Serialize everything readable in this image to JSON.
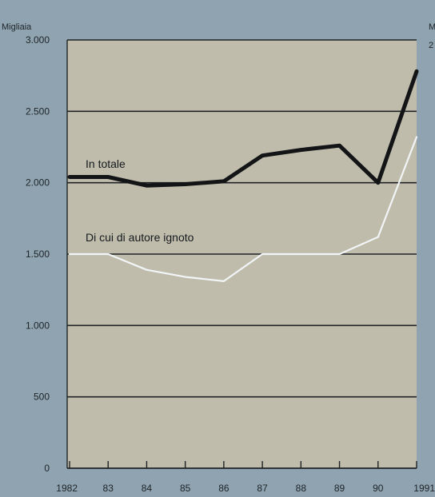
{
  "chart_data": {
    "type": "line",
    "ylabel": "Migliaia",
    "right_axis_fragments": [
      "M",
      "2"
    ],
    "x": [
      "1982",
      "83",
      "84",
      "85",
      "86",
      "87",
      "88",
      "89",
      "90",
      "1991"
    ],
    "ylim": [
      0,
      3000
    ],
    "yticks": [
      0,
      500,
      1000,
      1500,
      2000,
      2500,
      3000
    ],
    "ytick_labels": [
      "0",
      "500",
      "1.000",
      "1.500",
      "2.000",
      "2.500",
      "3.000"
    ],
    "grid": true,
    "series": [
      {
        "name": "In totale",
        "values": [
          2040,
          2040,
          1980,
          1990,
          2010,
          2190,
          2230,
          2260,
          2000,
          2780
        ],
        "color": "#121416"
      },
      {
        "name": "Di cui di autore ignoto",
        "values": [
          1500,
          1500,
          1390,
          1340,
          1310,
          1500,
          1500,
          1500,
          1620,
          2320
        ],
        "color": "#f2f5f7"
      }
    ],
    "colors": {
      "page_bg": "#8fa4b0",
      "plot_bg": "#c0bcac",
      "grid": "#1f2326"
    }
  }
}
